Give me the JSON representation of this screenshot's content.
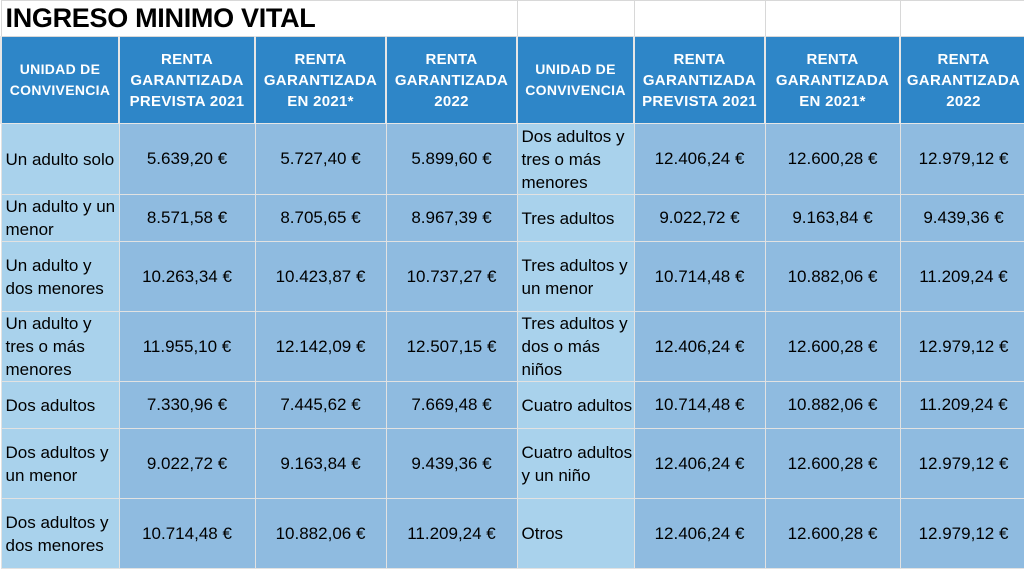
{
  "title": "INGRESO MINIMO VITAL",
  "headers": {
    "unit": "UNIDAD DE CONVIVENCIA",
    "prevista_2021": "RENTA GARANTIZADA PREVISTA 2021",
    "en_2021": "RENTA GARANTIZADA EN 2021*",
    "y2022": "RENTA GARANTIZADA 2022"
  },
  "colors": {
    "header_bg": "#2e86c8",
    "label_bg": "#a9d2ec",
    "value_bg": "#8fbbe0"
  },
  "rows": [
    {
      "left": {
        "unit": "Un adulto solo",
        "prevista_2021": "5.639,20 €",
        "en_2021": "5.727,40 €",
        "y2022": "5.899,60 €"
      },
      "right": {
        "unit": "Dos adultos y tres o más menores",
        "prevista_2021": "12.406,24 €",
        "en_2021": "12.600,28 €",
        "y2022": "12.979,12 €"
      }
    },
    {
      "left": {
        "unit": "Un adulto y un menor",
        "prevista_2021": "8.571,58 €",
        "en_2021": "8.705,65 €",
        "y2022": "8.967,39 €"
      },
      "right": {
        "unit": "Tres adultos",
        "prevista_2021": "9.022,72 €",
        "en_2021": "9.163,84 €",
        "y2022": "9.439,36 €"
      }
    },
    {
      "left": {
        "unit": "Un adulto y dos menores",
        "prevista_2021": "10.263,34 €",
        "en_2021": "10.423,87 €",
        "y2022": "10.737,27 €"
      },
      "right": {
        "unit": "Tres adultos y un menor",
        "prevista_2021": "10.714,48 €",
        "en_2021": "10.882,06 €",
        "y2022": "11.209,24 €"
      }
    },
    {
      "left": {
        "unit": "Un adulto y tres o más menores",
        "prevista_2021": "11.955,10 €",
        "en_2021": "12.142,09 €",
        "y2022": "12.507,15 €"
      },
      "right": {
        "unit": "Tres adultos y dos o más niños",
        "prevista_2021": "12.406,24 €",
        "en_2021": "12.600,28 €",
        "y2022": "12.979,12 €"
      }
    },
    {
      "left": {
        "unit": "Dos adultos",
        "prevista_2021": "7.330,96 €",
        "en_2021": "7.445,62 €",
        "y2022": "7.669,48 €"
      },
      "right": {
        "unit": "Cuatro adultos",
        "prevista_2021": "10.714,48 €",
        "en_2021": "10.882,06 €",
        "y2022": "11.209,24 €"
      }
    },
    {
      "left": {
        "unit": "Dos adultos y un menor",
        "prevista_2021": "9.022,72 €",
        "en_2021": "9.163,84 €",
        "y2022": "9.439,36 €"
      },
      "right": {
        "unit": "Cuatro adultos y un niño",
        "prevista_2021": "12.406,24 €",
        "en_2021": "12.600,28 €",
        "y2022": "12.979,12 €"
      }
    },
    {
      "left": {
        "unit": "Dos adultos y dos menores",
        "prevista_2021": "10.714,48 €",
        "en_2021": "10.882,06 €",
        "y2022": "11.209,24 €"
      },
      "right": {
        "unit": "Otros",
        "prevista_2021": "12.406,24 €",
        "en_2021": "12.600,28 €",
        "y2022": "12.979,12 €"
      }
    }
  ]
}
